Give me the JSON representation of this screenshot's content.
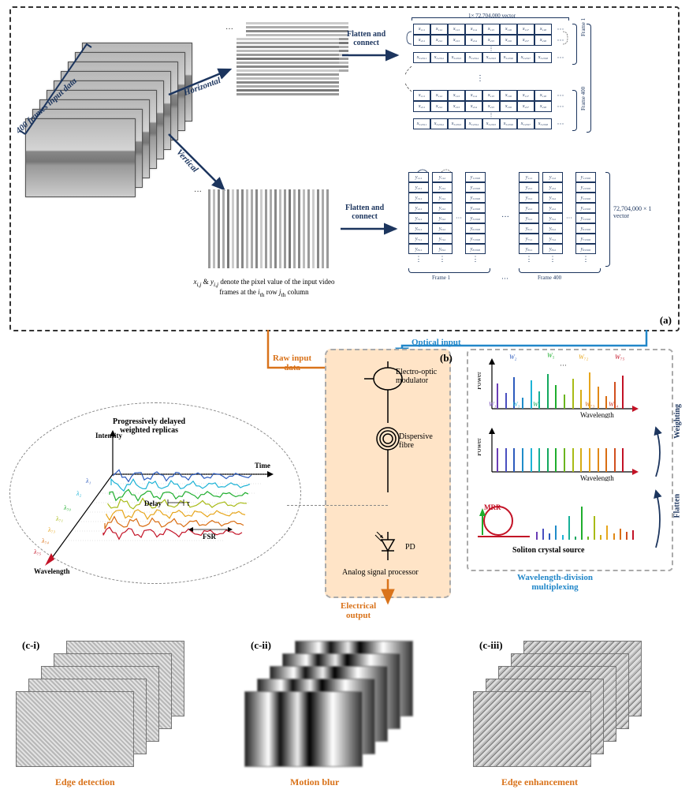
{
  "panel_a": {
    "frames_label": "400 frames input data",
    "horizontal_label": "Horizontal",
    "vertical_label": "Vertical",
    "flatten_label": "Flatten and\nconnect",
    "vector_h_label": "1× 72,704,000 vector",
    "vector_v_label": "72,704,000 × 1\nvector",
    "frame1_label": "Frame 1",
    "frame400_label": "Frame 400",
    "pixel_note": "x_{i,j} & y_{i,j} denote the pixel value of the input video\nframes at the i_{th} row j_{th} column",
    "panel_tag": "(a)",
    "h_cells_r1": [
      "x₁,₁",
      "x₁,₂",
      "x₁,₃",
      "x₁,₄",
      "x₁,₅",
      "x₁,₆",
      "x₁,₇",
      "x₁,₈",
      "···"
    ],
    "h_cells_r2": [
      "x₂,₁",
      "x₂,₂",
      "x₂,₃",
      "x₂,₄",
      "x₂,₅",
      "x₂,₆",
      "x₂,₇",
      "x₂,₈",
      "···"
    ],
    "h_cells_r3": [
      "x₃₂₀,₁",
      "x₃₂₀,₂",
      "x₃₂₀,₃",
      "x₃₂₀,₄",
      "x₃₂₀,₅",
      "x₃₂₀,₆",
      "x₃₂₀,₇",
      "x₃₂₀,₈",
      "···"
    ],
    "v_cells_c1": [
      "y₁,₁",
      "y₂,₁",
      "y₃,₁",
      "y₄,₁",
      "y₅,₁",
      "y₆,₁",
      "y₇,₁",
      "y₈,₁",
      "⋮"
    ],
    "v_cells_c2": [
      "y₁,₂",
      "y₂,₂",
      "y₃,₂",
      "y₄,₂",
      "y₅,₂",
      "y₆,₂",
      "y₇,₂",
      "y₈,₂",
      "⋮"
    ],
    "v_cells_c3": [
      "y₁,₅₆₈",
      "y₂,₅₆₈",
      "y₃,₅₆₈",
      "y₄,₅₆₈",
      "y₅,₅₆₈",
      "y₆,₅₆₈",
      "y₇,₅₆₈",
      "y₈,₅₆₈",
      "⋮"
    ]
  },
  "panel_b": {
    "raw_input_label": "Raw input\ndata",
    "optical_input_label": "Optical input",
    "eom_label": "Electro-optic\nmodulator",
    "fibre_label": "Dispersive\nfibre",
    "pd_label": "PD",
    "processor_label": "Analog signal processor",
    "output_label": "Electrical\noutput",
    "panel_tag": "(b)"
  },
  "wdm": {
    "weights_top": [
      "W₁",
      "W₂",
      "W₃",
      "W₄",
      "W₅",
      "W₇₂",
      "W₇₃",
      "W₇₄",
      "W₇₅"
    ],
    "weight_colors": [
      "#6a3db5",
      "#2d5bbd",
      "#1db3d6",
      "#12a85e",
      "#1fae2e",
      "#e7a61c",
      "#d96d12",
      "#d13a2e",
      "#c31226"
    ],
    "power_label": "Power",
    "wavelength_label": "Wavelength",
    "weighting_label": "Weighting",
    "flatten_label": "Flatten",
    "mrr_label": "MRR",
    "source_label": "Soliton crystal source",
    "wdm_label": "Wavelength-division\nmultiplexing",
    "comb_colors": [
      "#6a3db5",
      "#4a4fc0",
      "#2d5bbd",
      "#1f8cc9",
      "#1db3d6",
      "#17b098",
      "#12a85e",
      "#1fae2e",
      "#6ab51e",
      "#a8bb16",
      "#d6ac14",
      "#e7a61c",
      "#e08815",
      "#d96d12",
      "#d14f1e",
      "#c31226"
    ],
    "comb_weighted_heights": [
      32,
      20,
      40,
      14,
      36,
      22,
      44,
      30,
      18,
      38,
      24,
      46,
      28,
      16,
      34,
      42
    ],
    "comb_flat_height": 30,
    "comb_soliton_heights": [
      10,
      14,
      8,
      18,
      6,
      30,
      4,
      42,
      4,
      30,
      6,
      18,
      8,
      14,
      10,
      12
    ]
  },
  "replica": {
    "title": "Progressively delayed\nweighted replicas",
    "intensity_label": "Intensity",
    "time_label": "Time",
    "wavelength_label": "Wavelength",
    "delay_label": "Delay",
    "tau": "τ",
    "fsr_label": "FSR",
    "lambdas": [
      "λ₁",
      "λ₂",
      "λ₇₀",
      "λ₇₁",
      "λ₇₃",
      "λ₇₄",
      "λ₇₅"
    ],
    "lambda_colors": [
      "#2d5bbd",
      "#1db3d6",
      "#1fae2e",
      "#a8bb16",
      "#e7a61c",
      "#d96d12",
      "#c31226"
    ]
  },
  "outputs": {
    "c1_tag": "(c-i)",
    "c1_label": "Edge detection",
    "c2_tag": "(c-ii)",
    "c2_label": "Motion blur",
    "c3_tag": "(c-iii)",
    "c3_label": "Edge enhancement"
  },
  "colors": {
    "navy": "#1c355e",
    "orange": "#d9731b",
    "cyan": "#2287c9",
    "peach": "#ffe4c7"
  }
}
